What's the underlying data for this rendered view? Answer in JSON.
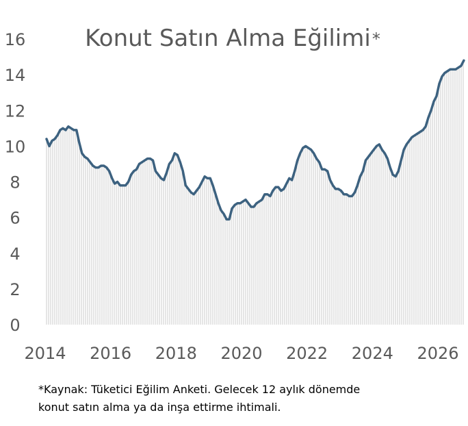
{
  "chart_data": {
    "type": "area",
    "title": "Konut Satın Alma Eğilimi",
    "title_mark": "*",
    "xlabel": "",
    "ylabel": "",
    "xlim": [
      2014,
      2026
    ],
    "ylim": [
      0,
      16
    ],
    "x_ticks": [
      "2014",
      "2016",
      "2018",
      "2020",
      "2022",
      "2024",
      "2026"
    ],
    "y_ticks": [
      "0",
      "2",
      "4",
      "6",
      "8",
      "10",
      "12",
      "14",
      "16"
    ],
    "grid": false,
    "legend": "none",
    "frequency": "monthly",
    "x_start": "2014-01",
    "line_color": "#3d6280",
    "fill_color": "#bfbfbf",
    "values": [
      10.4,
      10.0,
      10.3,
      10.4,
      10.6,
      10.9,
      11.0,
      10.9,
      11.1,
      11.0,
      10.9,
      10.9,
      10.2,
      9.6,
      9.4,
      9.3,
      9.1,
      8.9,
      8.8,
      8.8,
      8.9,
      8.9,
      8.8,
      8.6,
      8.2,
      7.9,
      8.0,
      7.8,
      7.8,
      7.8,
      8.0,
      8.4,
      8.6,
      8.7,
      9.0,
      9.1,
      9.2,
      9.3,
      9.3,
      9.2,
      8.6,
      8.4,
      8.2,
      8.1,
      8.5,
      9.0,
      9.2,
      9.6,
      9.5,
      9.1,
      8.6,
      7.8,
      7.6,
      7.4,
      7.3,
      7.5,
      7.7,
      8.0,
      8.3,
      8.2,
      8.2,
      7.8,
      7.3,
      6.8,
      6.4,
      6.2,
      5.9,
      5.9,
      6.5,
      6.7,
      6.8,
      6.8,
      6.9,
      7.0,
      6.8,
      6.6,
      6.6,
      6.8,
      6.9,
      7.0,
      7.3,
      7.3,
      7.2,
      7.5,
      7.7,
      7.7,
      7.5,
      7.6,
      7.9,
      8.2,
      8.1,
      8.6,
      9.2,
      9.6,
      9.9,
      10.0,
      9.9,
      9.8,
      9.6,
      9.3,
      9.1,
      8.7,
      8.7,
      8.6,
      8.1,
      7.8,
      7.6,
      7.6,
      7.5,
      7.3,
      7.3,
      7.2,
      7.2,
      7.4,
      7.8,
      8.3,
      8.6,
      9.2,
      9.4,
      9.6,
      9.8,
      10.0,
      10.1,
      9.8,
      9.6,
      9.3,
      8.8,
      8.4,
      8.3,
      8.6,
      9.2,
      9.8,
      10.1,
      10.3,
      10.5,
      10.6,
      10.7,
      10.8,
      10.9,
      11.1,
      11.6,
      12.0,
      12.5,
      12.8,
      13.5,
      13.9,
      14.1,
      14.2,
      14.3,
      14.3,
      14.3,
      14.4,
      14.5,
      14.8
    ]
  },
  "footnote": {
    "line1": "*Kaynak: Tüketici Eğilim Anketi. Gelecek 12 aylık dönemde",
    "line2": "konut satın alma ya da inşa ettirme ihtimali."
  }
}
